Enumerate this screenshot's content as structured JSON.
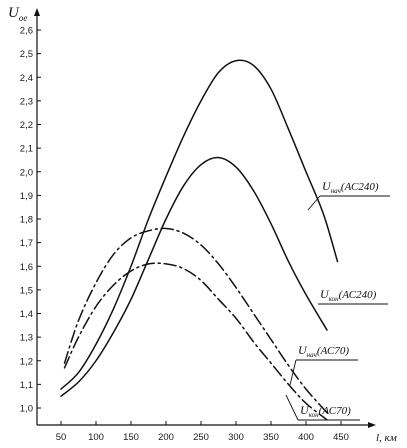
{
  "chart_data": {
    "type": "line",
    "title": "",
    "xlabel": "l, км",
    "ylabel": "U_ое",
    "ylabel_main": "U",
    "ylabel_sub": "ое",
    "xlim": [
      30,
      470
    ],
    "ylim": [
      0.9,
      2.75
    ],
    "x_ticks": [
      50,
      100,
      150,
      200,
      250,
      300,
      350,
      400,
      450
    ],
    "y_ticks": [
      1.0,
      1.1,
      1.2,
      1.3,
      1.4,
      1.5,
      1.6,
      1.7,
      1.8,
      1.9,
      2.0,
      2.1,
      2.2,
      2.3,
      2.4,
      2.5,
      2.6
    ],
    "y_tick_labels": [
      "1,0",
      "1,1",
      "1,2",
      "1,3",
      "1,4",
      "1,5",
      "1,6",
      "1,7",
      "1,8",
      "1,9",
      "2,0",
      "2,1",
      "2,2",
      "2,3",
      "2,4",
      "2,5",
      "2,6"
    ],
    "grid": false,
    "legend": "none",
    "series": [
      {
        "name": "U_нач(АС240)",
        "style": "solid",
        "x": [
          50,
          75,
          100,
          125,
          150,
          175,
          200,
          225,
          250,
          275,
          300,
          325,
          350,
          375,
          400,
          425,
          445
        ],
        "y": [
          1.08,
          1.15,
          1.27,
          1.42,
          1.6,
          1.8,
          1.98,
          2.15,
          2.3,
          2.42,
          2.47,
          2.45,
          2.35,
          2.18,
          2.0,
          1.82,
          1.62
        ]
      },
      {
        "name": "U_кон(АС240)",
        "style": "solid",
        "x": [
          50,
          75,
          100,
          125,
          150,
          175,
          200,
          225,
          250,
          275,
          300,
          325,
          350,
          375,
          400,
          430
        ],
        "y": [
          1.05,
          1.11,
          1.2,
          1.32,
          1.46,
          1.63,
          1.8,
          1.94,
          2.03,
          2.06,
          2.02,
          1.92,
          1.78,
          1.62,
          1.48,
          1.33
        ]
      },
      {
        "name": "U_нач(АС70)",
        "style": "dashdot",
        "x": [
          55,
          75,
          100,
          125,
          150,
          175,
          200,
          225,
          250,
          275,
          300,
          325,
          350,
          375,
          400,
          430
        ],
        "y": [
          1.19,
          1.37,
          1.53,
          1.65,
          1.72,
          1.75,
          1.76,
          1.74,
          1.69,
          1.61,
          1.51,
          1.4,
          1.29,
          1.18,
          1.08,
          0.98
        ]
      },
      {
        "name": "U_кон(АС70)",
        "style": "dashdot",
        "x": [
          55,
          75,
          100,
          125,
          150,
          175,
          200,
          225,
          250,
          275,
          300,
          325,
          350,
          375,
          400,
          430
        ],
        "y": [
          1.17,
          1.3,
          1.43,
          1.52,
          1.58,
          1.61,
          1.61,
          1.59,
          1.54,
          1.46,
          1.38,
          1.28,
          1.19,
          1.1,
          1.02,
          0.95
        ]
      }
    ],
    "annotations": [
      {
        "main": "U",
        "sub": "нач",
        "suffix": "(АС240)"
      },
      {
        "main": "U",
        "sub": "кон",
        "suffix": "(АС240)"
      },
      {
        "main": "U",
        "sub": "нач",
        "suffix": "(АС70)"
      },
      {
        "main": "U",
        "sub": "кон",
        "suffix": "(АС70)"
      }
    ]
  }
}
